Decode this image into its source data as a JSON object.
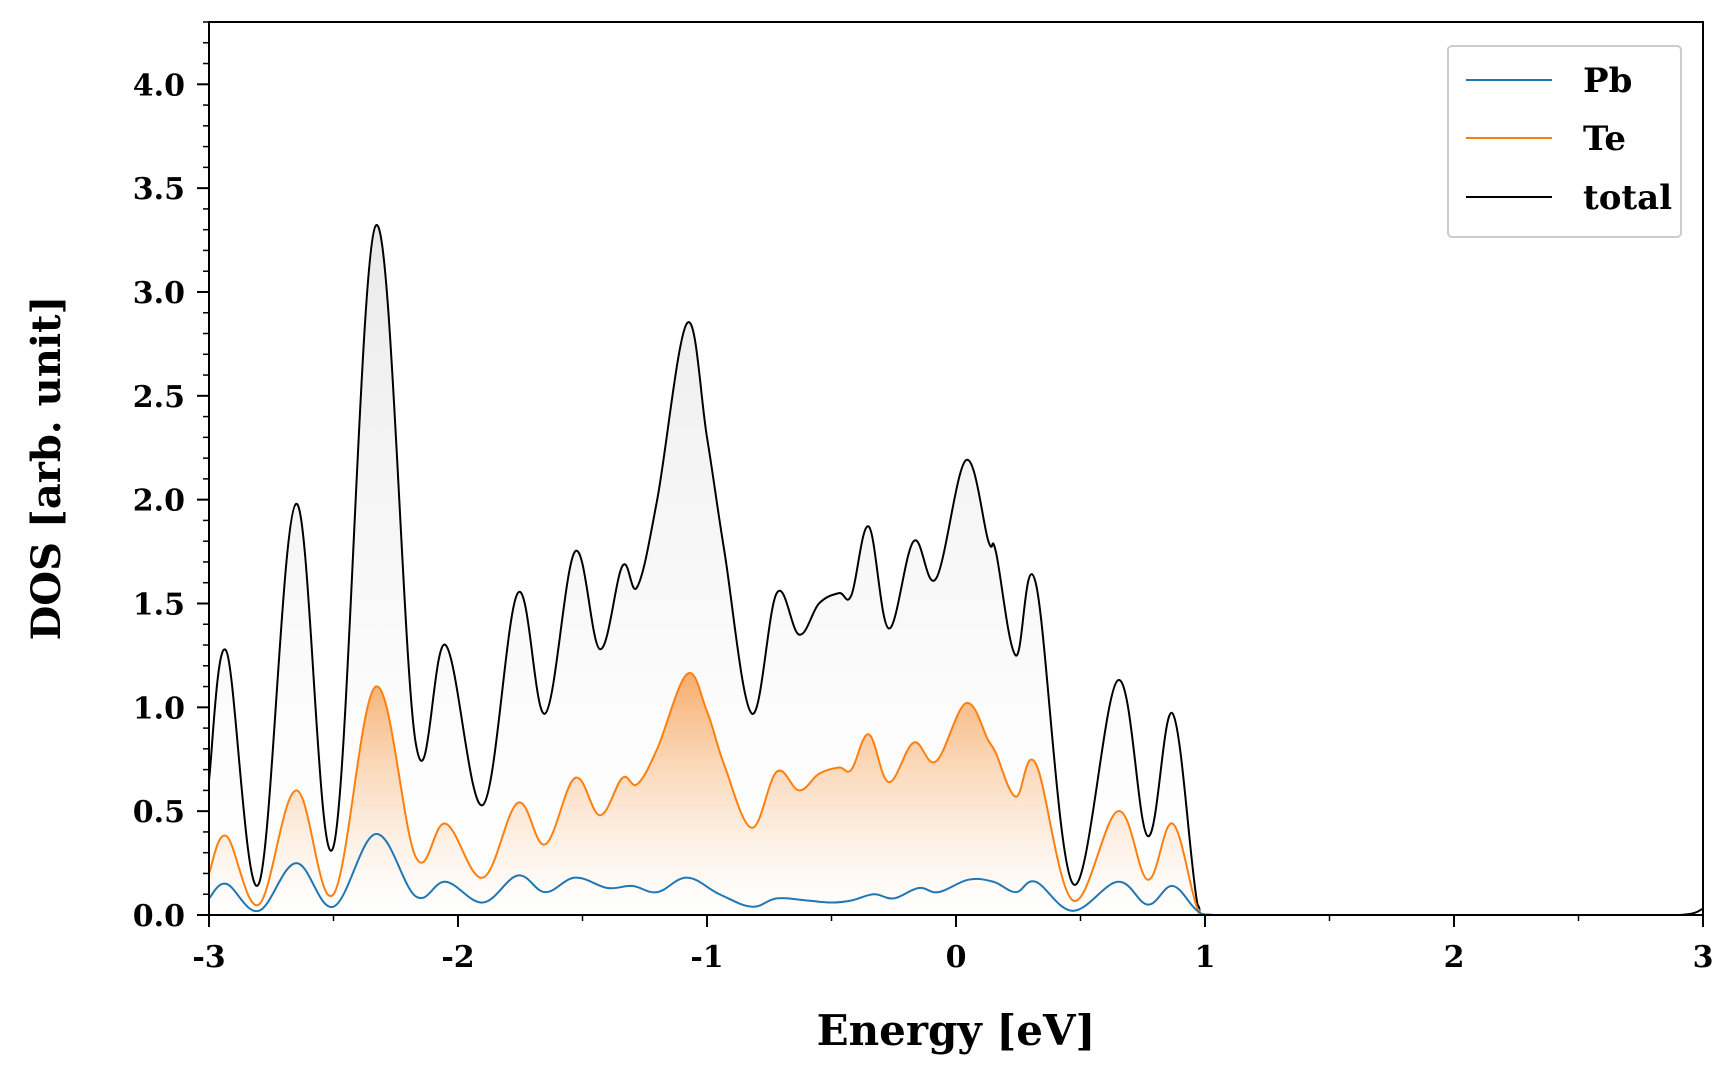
{
  "chart_data": {
    "type": "line",
    "xlabel": "Energy [eV]",
    "ylabel": "DOS [arb. unit]",
    "xlim": [
      -3,
      3
    ],
    "ylim": [
      0,
      4.3
    ],
    "grid": false,
    "legend_position": "top-right",
    "x_ticks": [
      -3,
      -2,
      -1,
      0,
      1,
      2,
      3
    ],
    "x_tick_labels": [
      "-3",
      "-2",
      "-1",
      "0",
      "1",
      "2",
      "3"
    ],
    "y_ticks": [
      0.0,
      0.5,
      1.0,
      1.5,
      2.0,
      2.5,
      3.0,
      3.5,
      4.0
    ],
    "y_tick_labels": [
      "0.0",
      "0.5",
      "1.0",
      "1.5",
      "2.0",
      "2.5",
      "3.0",
      "3.5",
      "4.0"
    ],
    "series": [
      {
        "name": "Pb",
        "color": "#1f77b4",
        "fill": false,
        "x": [
          -3.0,
          -2.93,
          -2.8,
          -2.65,
          -2.5,
          -2.33,
          -2.17,
          -2.05,
          -1.9,
          -1.76,
          -1.65,
          -1.53,
          -1.4,
          -1.3,
          -1.2,
          -1.08,
          -0.95,
          -0.82,
          -0.72,
          -0.6,
          -0.5,
          -0.42,
          -0.33,
          -0.25,
          -0.15,
          -0.07,
          0.05,
          0.15,
          0.24,
          0.32,
          0.47,
          0.65,
          0.77,
          0.87,
          0.97,
          1.05,
          1.5,
          2.0,
          2.5,
          3.0
        ],
        "y": [
          0.08,
          0.15,
          0.02,
          0.25,
          0.04,
          0.39,
          0.09,
          0.16,
          0.06,
          0.19,
          0.11,
          0.18,
          0.13,
          0.14,
          0.11,
          0.18,
          0.1,
          0.04,
          0.08,
          0.07,
          0.06,
          0.07,
          0.1,
          0.08,
          0.13,
          0.11,
          0.17,
          0.16,
          0.11,
          0.16,
          0.02,
          0.16,
          0.05,
          0.14,
          0.02,
          0.0,
          0.0,
          0.0,
          0.0,
          0.0
        ]
      },
      {
        "name": "Te",
        "color": "#ff7f0e",
        "fill": true,
        "x": [
          -3.0,
          -2.93,
          -2.8,
          -2.65,
          -2.5,
          -2.33,
          -2.17,
          -2.05,
          -1.9,
          -1.76,
          -1.65,
          -1.53,
          -1.43,
          -1.34,
          -1.28,
          -1.2,
          -1.08,
          -1.0,
          -0.93,
          -0.82,
          -0.72,
          -0.63,
          -0.55,
          -0.47,
          -0.42,
          -0.35,
          -0.27,
          -0.17,
          -0.08,
          0.04,
          0.13,
          0.16,
          0.24,
          0.32,
          0.47,
          0.65,
          0.77,
          0.87,
          0.97,
          1.03,
          1.5,
          2.0,
          2.5,
          3.0
        ],
        "y": [
          0.2,
          0.38,
          0.05,
          0.6,
          0.1,
          1.1,
          0.28,
          0.44,
          0.18,
          0.54,
          0.34,
          0.66,
          0.48,
          0.66,
          0.63,
          0.8,
          1.16,
          0.98,
          0.72,
          0.42,
          0.69,
          0.6,
          0.68,
          0.71,
          0.7,
          0.87,
          0.64,
          0.83,
          0.74,
          1.02,
          0.84,
          0.78,
          0.57,
          0.73,
          0.07,
          0.5,
          0.17,
          0.44,
          0.03,
          0.0,
          0.0,
          0.0,
          0.0,
          0.0
        ]
      },
      {
        "name": "total",
        "color": "#000000",
        "fill": true,
        "x": [
          -3.0,
          -2.93,
          -2.8,
          -2.65,
          -2.5,
          -2.33,
          -2.17,
          -2.05,
          -1.9,
          -1.76,
          -1.65,
          -1.53,
          -1.43,
          -1.34,
          -1.28,
          -1.2,
          -1.08,
          -1.0,
          -0.93,
          -0.82,
          -0.72,
          -0.63,
          -0.55,
          -0.47,
          -0.42,
          -0.35,
          -0.27,
          -0.17,
          -0.08,
          0.04,
          0.13,
          0.16,
          0.24,
          0.32,
          0.47,
          0.65,
          0.77,
          0.87,
          0.97,
          1.03,
          1.5,
          2.0,
          2.5,
          2.9,
          3.0
        ],
        "y": [
          0.65,
          1.27,
          0.15,
          1.98,
          0.33,
          3.32,
          0.83,
          1.3,
          0.53,
          1.55,
          0.97,
          1.75,
          1.28,
          1.68,
          1.58,
          2.0,
          2.85,
          2.3,
          1.75,
          0.97,
          1.55,
          1.35,
          1.5,
          1.55,
          1.54,
          1.87,
          1.38,
          1.8,
          1.62,
          2.19,
          1.8,
          1.75,
          1.25,
          1.6,
          0.15,
          1.13,
          0.38,
          0.97,
          0.05,
          0.0,
          0.0,
          0.0,
          0.0,
          0.0,
          0.03
        ]
      }
    ]
  }
}
